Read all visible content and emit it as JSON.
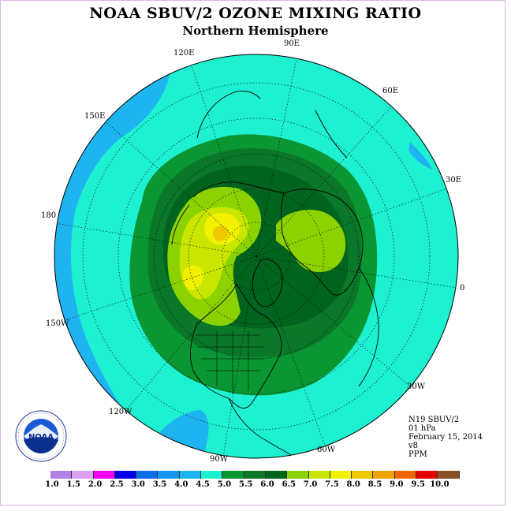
{
  "header": {
    "title": "NOAA SBUV/2 OZONE MIXING RATIO",
    "subtitle": "Northern Hemisphere"
  },
  "map": {
    "projection": "north-polar-stereographic",
    "ocean_color": "#1ef0d2",
    "longitude_labels": [
      "120E",
      "90E",
      "60E",
      "30E",
      "0",
      "30W",
      "60W",
      "90W",
      "120W",
      "150W",
      "180",
      "150E"
    ]
  },
  "info": {
    "instrument": "N19 SBUV/2",
    "level": "01 hPa",
    "date": "February 15, 2014",
    "version": "v8",
    "units": "PPM"
  },
  "colorbar": {
    "ticks": [
      "1.0",
      "1.5",
      "2.0",
      "2.5",
      "3.0",
      "3.5",
      "4.0",
      "4.5",
      "5.0",
      "5.5",
      "6.0",
      "6.5",
      "7.0",
      "7.5",
      "8.0",
      "8.5",
      "9.0",
      "9.5",
      "10.0"
    ],
    "colors": [
      "#b482e6",
      "#dca0f0",
      "#f000f0",
      "#0000e6",
      "#0a6ee6",
      "#1496f0",
      "#1eb4f0",
      "#1ef0d2",
      "#0a9632",
      "#0a7828",
      "#00641e",
      "#8cd200",
      "#c8e600",
      "#f0f000",
      "#f0c800",
      "#f0a000",
      "#f06400",
      "#e60000",
      "#8c5028"
    ]
  },
  "logo": {
    "text": "NOAA",
    "ring_text": "NATIONAL OCEANIC AND ATMOSPHERIC ADMINISTRATION · U.S. DEPARTMENT OF COMMERCE"
  }
}
